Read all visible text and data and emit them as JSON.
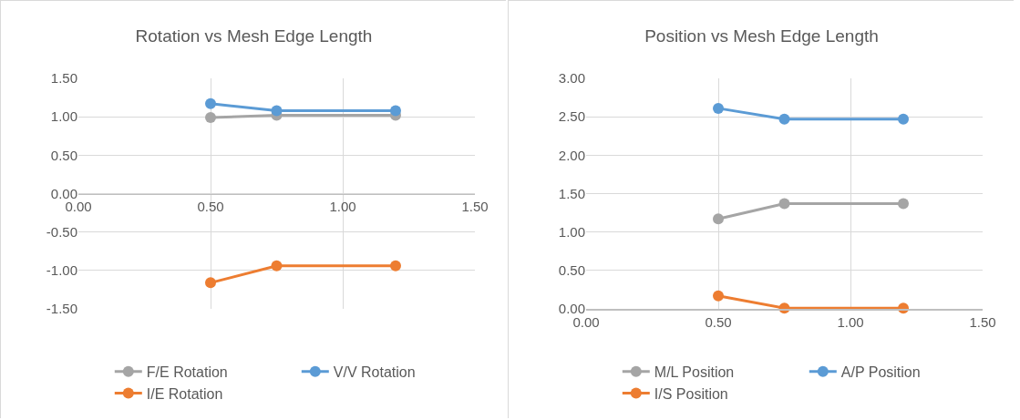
{
  "chart_data": [
    {
      "type": "line",
      "title": "Rotation vs Mesh Edge Length",
      "x": [
        0.5,
        0.75,
        1.2
      ],
      "series": [
        {
          "name": "F/E Rotation",
          "color": "#a5a5a5",
          "values": [
            0.99,
            1.02,
            1.02
          ]
        },
        {
          "name": "V/V Rotation",
          "color": "#5b9bd5",
          "values": [
            1.17,
            1.08,
            1.08
          ]
        },
        {
          "name": "I/E Rotation",
          "color": "#ed7d31",
          "values": [
            -1.16,
            -0.94,
            -0.94
          ]
        }
      ],
      "xlim": [
        0,
        1.5
      ],
      "xticks": [
        {
          "value": 0,
          "label": "0.00"
        },
        {
          "value": 0.5,
          "label": "0.50"
        },
        {
          "value": 1,
          "label": "1.00"
        },
        {
          "value": 1.5,
          "label": "1.50"
        }
      ],
      "ylim": [
        -1.5,
        1.5
      ],
      "yticks": [
        {
          "value": -1.5,
          "label": "-1.50"
        },
        {
          "value": -1,
          "label": "-1.00"
        },
        {
          "value": -0.5,
          "label": "-0.50"
        },
        {
          "value": 0,
          "label": "0.00"
        },
        {
          "value": 0.5,
          "label": "0.50"
        },
        {
          "value": 1,
          "label": "1.00"
        },
        {
          "value": 1.5,
          "label": "1.50"
        }
      ],
      "grid": true,
      "legend": "bottom",
      "marker": "circle",
      "line_style": "solid"
    },
    {
      "type": "line",
      "title": "Position vs Mesh Edge Length",
      "x": [
        0.5,
        0.75,
        1.2
      ],
      "series": [
        {
          "name": "M/L Position",
          "color": "#a5a5a5",
          "values": [
            1.17,
            1.37,
            1.37
          ]
        },
        {
          "name": "A/P Position",
          "color": "#5b9bd5",
          "values": [
            2.61,
            2.47,
            2.47
          ]
        },
        {
          "name": "I/S Position",
          "color": "#ed7d31",
          "values": [
            0.17,
            0.01,
            0.01
          ]
        }
      ],
      "xlim": [
        0,
        1.5
      ],
      "xticks": [
        {
          "value": 0,
          "label": "0.00"
        },
        {
          "value": 0.5,
          "label": "0.50"
        },
        {
          "value": 1,
          "label": "1.00"
        },
        {
          "value": 1.5,
          "label": "1.50"
        }
      ],
      "ylim": [
        0,
        3
      ],
      "yticks": [
        {
          "value": 0,
          "label": "0.00"
        },
        {
          "value": 0.5,
          "label": "0.50"
        },
        {
          "value": 1,
          "label": "1.00"
        },
        {
          "value": 1.5,
          "label": "1.50"
        },
        {
          "value": 2,
          "label": "2.00"
        },
        {
          "value": 2.5,
          "label": "2.50"
        },
        {
          "value": 3,
          "label": "3.00"
        }
      ],
      "grid": true,
      "legend": "bottom",
      "marker": "circle",
      "line_style": "solid"
    }
  ]
}
